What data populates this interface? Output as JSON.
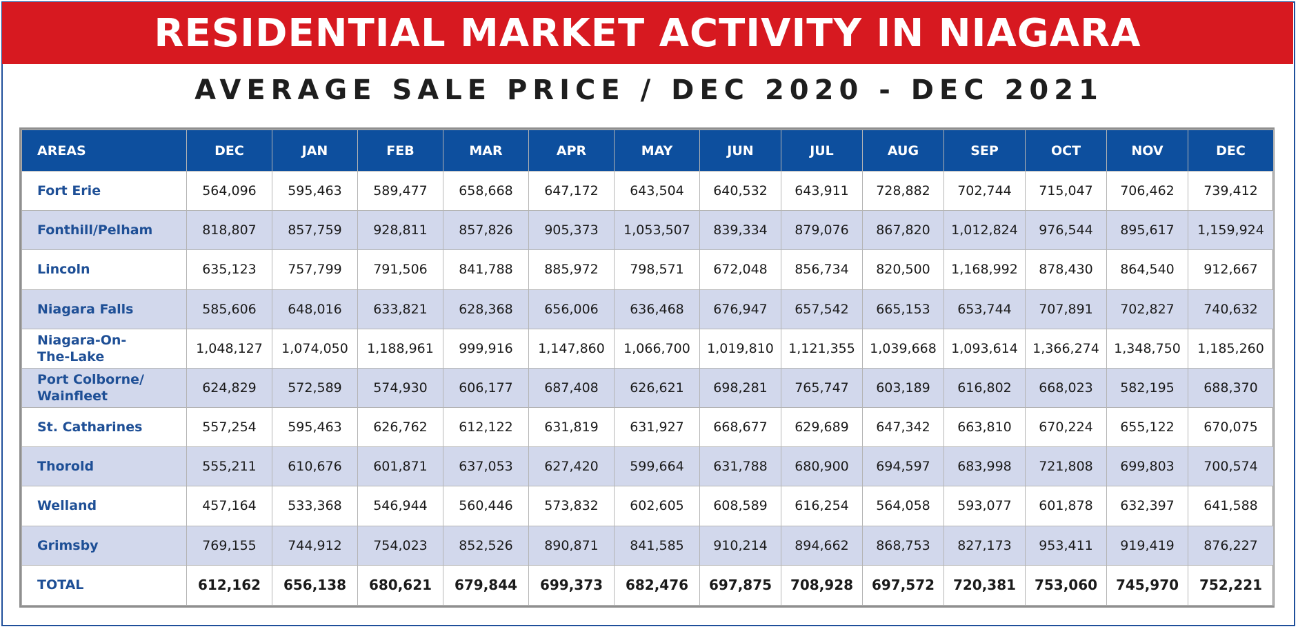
{
  "banner": {
    "title": "RESIDENTIAL MARKET ACTIVITY IN NIAGARA"
  },
  "subtitle": "AVERAGE SALE PRICE / DEC 2020 - DEC 2021",
  "colors": {
    "banner_red": "#d71920",
    "header_blue": "#0d4f9e",
    "area_text_blue": "#1e4f96",
    "alt_row": "#d2d8ec"
  },
  "chart_data": {
    "type": "table",
    "columns": [
      "AREAS",
      "DEC",
      "JAN",
      "FEB",
      "MAR",
      "APR",
      "MAY",
      "JUN",
      "JUL",
      "AUG",
      "SEP",
      "OCT",
      "NOV",
      "DEC"
    ],
    "rows": [
      {
        "area": "Fort Erie",
        "values": [
          "564,096",
          "595,463",
          "589,477",
          "658,668",
          "647,172",
          "643,504",
          "640,532",
          "643,911",
          "728,882",
          "702,744",
          "715,047",
          "706,462",
          "739,412"
        ]
      },
      {
        "area": "Fonthill/Pelham",
        "values": [
          "818,807",
          "857,759",
          "928,811",
          "857,826",
          "905,373",
          "1,053,507",
          "839,334",
          "879,076",
          "867,820",
          "1,012,824",
          "976,544",
          "895,617",
          "1,159,924"
        ]
      },
      {
        "area": "Lincoln",
        "values": [
          "635,123",
          "757,799",
          "791,506",
          "841,788",
          "885,972",
          "798,571",
          "672,048",
          "856,734",
          "820,500",
          "1,168,992",
          "878,430",
          "864,540",
          "912,667"
        ]
      },
      {
        "area": "Niagara Falls",
        "values": [
          "585,606",
          "648,016",
          "633,821",
          "628,368",
          "656,006",
          "636,468",
          "676,947",
          "657,542",
          "665,153",
          "653,744",
          "707,891",
          "702,827",
          "740,632"
        ]
      },
      {
        "area": "Niagara-On-The-Lake",
        "values": [
          "1,048,127",
          "1,074,050",
          "1,188,961",
          "999,916",
          "1,147,860",
          "1,066,700",
          "1,019,810",
          "1,121,355",
          "1,039,668",
          "1,093,614",
          "1,366,274",
          "1,348,750",
          "1,185,260"
        ]
      },
      {
        "area": "Port Colborne/ Wainfleet",
        "values": [
          "624,829",
          "572,589",
          "574,930",
          "606,177",
          "687,408",
          "626,621",
          "698,281",
          "765,747",
          "603,189",
          "616,802",
          "668,023",
          "582,195",
          "688,370"
        ]
      },
      {
        "area": "St. Catharines",
        "values": [
          "557,254",
          "595,463",
          "626,762",
          "612,122",
          "631,819",
          "631,927",
          "668,677",
          "629,689",
          "647,342",
          "663,810",
          "670,224",
          "655,122",
          "670,075"
        ]
      },
      {
        "area": "Thorold",
        "values": [
          "555,211",
          "610,676",
          "601,871",
          "637,053",
          "627,420",
          "599,664",
          "631,788",
          "680,900",
          "694,597",
          "683,998",
          "721,808",
          "699,803",
          "700,574"
        ]
      },
      {
        "area": "Welland",
        "values": [
          "457,164",
          "533,368",
          "546,944",
          "560,446",
          "573,832",
          "602,605",
          "608,589",
          "616,254",
          "564,058",
          "593,077",
          "601,878",
          "632,397",
          "641,588"
        ]
      },
      {
        "area": "Grimsby",
        "values": [
          "769,155",
          "744,912",
          "754,023",
          "852,526",
          "890,871",
          "841,585",
          "910,214",
          "894,662",
          "868,753",
          "827,173",
          "953,411",
          "919,419",
          "876,227"
        ]
      }
    ],
    "total": {
      "area": "TOTAL",
      "values": [
        "612,162",
        "656,138",
        "680,621",
        "679,844",
        "699,373",
        "682,476",
        "697,875",
        "708,928",
        "697,572",
        "720,381",
        "753,060",
        "745,970",
        "752,221"
      ]
    }
  }
}
